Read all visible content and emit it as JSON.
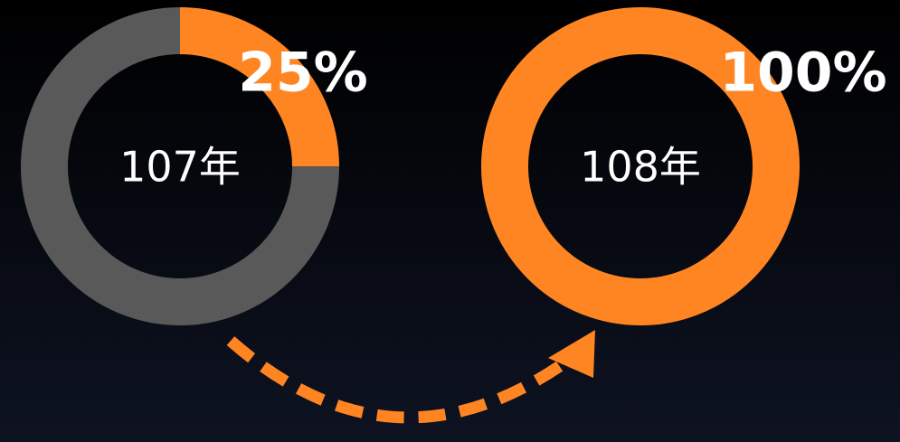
{
  "chart_data": [
    {
      "type": "donut",
      "center_label": "107年",
      "values": [
        25,
        75
      ],
      "value_labels": [
        "25%",
        null
      ],
      "colors": [
        "#ff8522",
        "#595959"
      ]
    },
    {
      "type": "donut",
      "center_label": "108年",
      "values": [
        100
      ],
      "value_labels": [
        "100%"
      ],
      "colors": [
        "#ff8522"
      ]
    }
  ]
}
